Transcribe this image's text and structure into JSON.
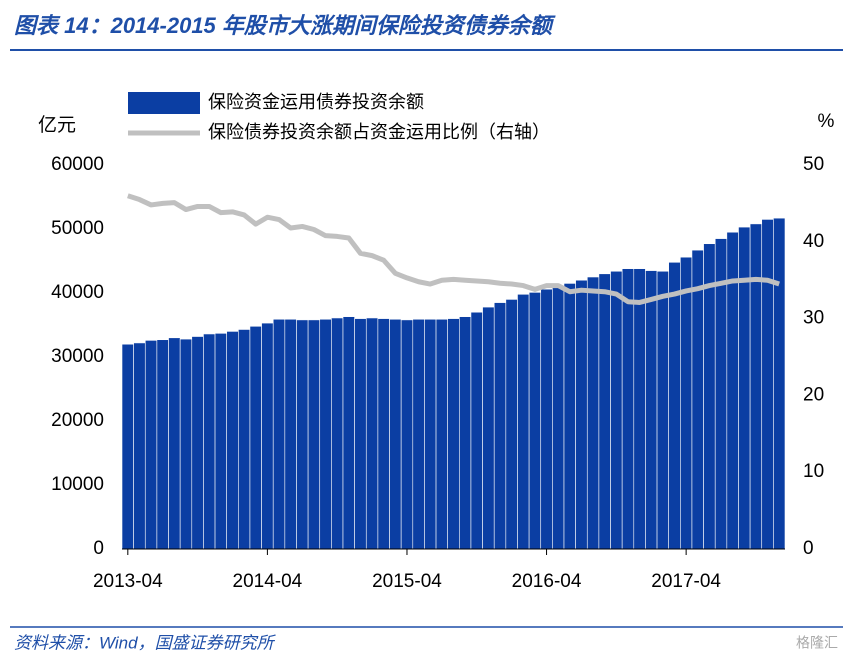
{
  "chart_data": {
    "type": "bar_line",
    "title": "图表 14：2014-2015 年股市大涨期间保险投资债券余额",
    "source": "资料来源：Wind，国盛证券研究所",
    "watermark": "格隆汇",
    "y_label": "亿元",
    "y2_label": "%",
    "categories": [
      "2013-04",
      null,
      null,
      null,
      null,
      null,
      null,
      null,
      null,
      null,
      null,
      null,
      "2014-04",
      null,
      null,
      null,
      null,
      null,
      null,
      null,
      null,
      null,
      null,
      null,
      "2015-04",
      null,
      null,
      null,
      null,
      null,
      null,
      null,
      null,
      null,
      null,
      null,
      "2016-04",
      null,
      null,
      null,
      null,
      null,
      null,
      null,
      null,
      null,
      null,
      null,
      "2017-04",
      null,
      null,
      null,
      null,
      null,
      null,
      null,
      null
    ],
    "series": [
      {
        "name": "保险资金运用债券投资余额",
        "type": "bar",
        "color": "#0b3ea3",
        "values": [
          32000,
          32200,
          32600,
          32700,
          33000,
          32800,
          33200,
          33600,
          33700,
          34000,
          34300,
          34800,
          35300,
          35900,
          35900,
          35800,
          35800,
          35900,
          36100,
          36300,
          36000,
          36100,
          36000,
          35900,
          35800,
          35900,
          35900,
          35900,
          36000,
          36300,
          37000,
          37800,
          38500,
          39000,
          39800,
          40100,
          40600,
          41000,
          41500,
          42000,
          42500,
          43000,
          43400,
          43800,
          43800,
          43500,
          43400,
          44800,
          45600,
          46700,
          47700,
          48500,
          49500,
          50300,
          50800,
          51500,
          51700
        ]
      },
      {
        "name": "保险债券投资余额占资金运用比例（右轴）",
        "type": "line",
        "axis": "y2",
        "color": "#c0c0c0",
        "values": [
          46,
          45.5,
          44.8,
          45,
          45.1,
          44.2,
          44.6,
          44.6,
          43.8,
          43.9,
          43.5,
          42.3,
          43.2,
          42.9,
          41.8,
          42,
          41.6,
          40.8,
          40.7,
          40.5,
          38.5,
          38.2,
          37.6,
          35.9,
          35.3,
          34.8,
          34.5,
          35,
          35.1,
          35,
          34.9,
          34.8,
          34.6,
          34.5,
          34.3,
          33.8,
          34.3,
          34.3,
          33.5,
          33.7,
          33.6,
          33.5,
          33.2,
          32.2,
          32.1,
          32.5,
          32.9,
          33.2,
          33.6,
          33.9,
          34.3,
          34.6,
          34.9,
          35,
          35.1,
          35,
          34.5
        ]
      }
    ],
    "ylim": [
      0,
      60000
    ],
    "yticks": [
      0,
      10000,
      20000,
      30000,
      40000,
      50000,
      60000
    ],
    "y2lim": [
      0,
      50
    ],
    "y2ticks": [
      0,
      10,
      20,
      30,
      40,
      50
    ],
    "grid": false
  }
}
